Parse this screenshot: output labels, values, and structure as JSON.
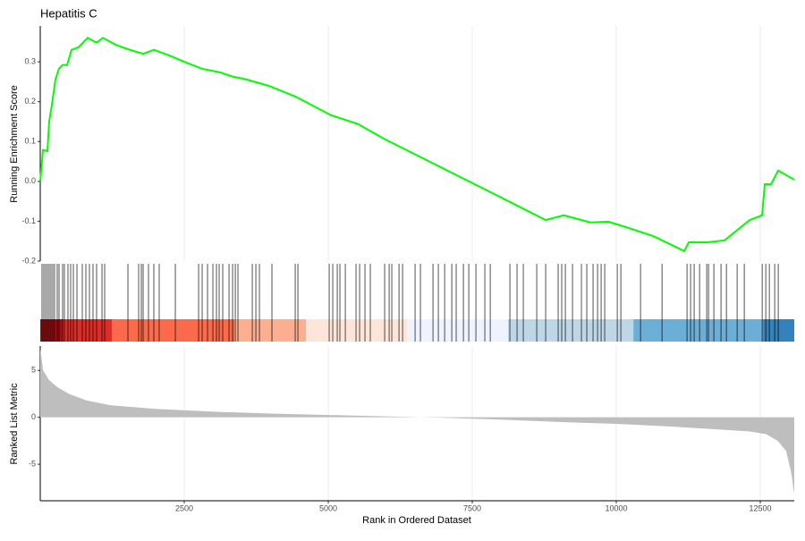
{
  "chart_data": {
    "type": "gsea",
    "title": "Hepatitis C",
    "xlabel": "Rank in Ordered Dataset",
    "xlim": [
      0,
      13090
    ],
    "xticks": [
      2500,
      5000,
      7500,
      10000,
      12500
    ],
    "grid": true,
    "es": {
      "ylabel": "Running Enrichment Score",
      "color": "#00ff00",
      "x": [
        0,
        47,
        124,
        155,
        200,
        264,
        326,
        388,
        466,
        543,
        668,
        823,
        978,
        1087,
        1320,
        1553,
        1786,
        1972,
        2252,
        2484,
        2795,
        3106,
        3339,
        3571,
        3960,
        4425,
        5047,
        5512,
        5978,
        6599,
        7220,
        7842,
        8307,
        8773,
        9084,
        9550,
        9860,
        10171,
        10637,
        11180,
        11258,
        11568,
        11879,
        12065,
        12314,
        12531,
        12578,
        12686,
        12810,
        13090
      ],
      "values": [
        0,
        0.079,
        0.076,
        0.15,
        0.19,
        0.256,
        0.283,
        0.292,
        0.292,
        0.33,
        0.337,
        0.36,
        0.348,
        0.36,
        0.342,
        0.33,
        0.32,
        0.33,
        0.315,
        0.301,
        0.283,
        0.274,
        0.263,
        0.256,
        0.24,
        0.213,
        0.166,
        0.144,
        0.106,
        0.061,
        0.016,
        -0.029,
        -0.063,
        -0.097,
        -0.085,
        -0.103,
        -0.101,
        -0.115,
        -0.137,
        -0.175,
        -0.153,
        -0.153,
        -0.148,
        -0.126,
        -0.097,
        -0.085,
        -0.007,
        -0.007,
        0.027,
        0.004
      ],
      "ylim": [
        -0.2,
        0.39
      ],
      "yticks": [
        -0.2,
        -0.1,
        {
          "value": 0,
          "label": "0.0"
        },
        0.1,
        0.2,
        0.3
      ]
    },
    "hits": {
      "color": "#000000",
      "x": [
        31,
        62,
        93,
        124,
        155,
        186,
        217,
        248,
        295,
        326,
        388,
        419,
        481,
        528,
        575,
        637,
        730,
        792,
        854,
        916,
        978,
        1072,
        1118,
        1522,
        1708,
        1755,
        1786,
        1879,
        1972,
        2065,
        2345,
        2749,
        2811,
        2904,
        2997,
        3059,
        3106,
        3168,
        3277,
        3339,
        3386,
        3432,
        3681,
        3743,
        3805,
        4022,
        4426,
        4473,
        5016,
        5078,
        5156,
        5202,
        5296,
        5482,
        5544,
        5637,
        5730,
        5979,
        6057,
        6103,
        6228,
        6290,
        6507,
        6600,
        6818,
        6911,
        7020,
        7144,
        7221,
        7346,
        7439,
        7563,
        7718,
        7812,
        8153,
        8277,
        8386,
        8619,
        8774,
        8991,
        9053,
        9116,
        9240,
        9395,
        9488,
        9597,
        9675,
        9737,
        9799,
        10017,
        10079,
        10421,
        10794,
        11228,
        11290,
        11352,
        11446,
        11570,
        11601,
        11694,
        11818,
        11912,
        12098,
        12222,
        12533,
        12595,
        12657,
        12750,
        12812
      ]
    },
    "bands": {
      "x": [
        0,
        388,
        1242,
        3370,
        4613,
        6368,
        8122,
        10297,
        12548,
        13090
      ],
      "colors": [
        "#a50f15",
        "#de2d26",
        "#fb6a4a",
        "#fcae91",
        "#fee5d9",
        "#eff3ff",
        "#bdd7e7",
        "#6baed6",
        "#3182bd"
      ]
    },
    "metric": {
      "ylabel": "Ranked List Metric",
      "color": "#bebebe",
      "x": [
        0,
        50,
        150,
        300,
        500,
        800,
        1200,
        2000,
        3000,
        4000,
        5000,
        6000,
        7000,
        8000,
        9000,
        10000,
        11000,
        11800,
        12300,
        12600,
        12800,
        12950,
        13040,
        13090
      ],
      "values": [
        7.3,
        5.0,
        4.0,
        3.2,
        2.5,
        1.8,
        1.3,
        0.9,
        0.6,
        0.4,
        0.25,
        0.1,
        -0.05,
        -0.25,
        -0.5,
        -0.7,
        -1.0,
        -1.3,
        -1.5,
        -1.8,
        -2.5,
        -3.6,
        -6,
        -8.2
      ],
      "ylim": [
        -8.9,
        7.6
      ],
      "yticks": [
        5,
        0,
        -5
      ]
    }
  }
}
